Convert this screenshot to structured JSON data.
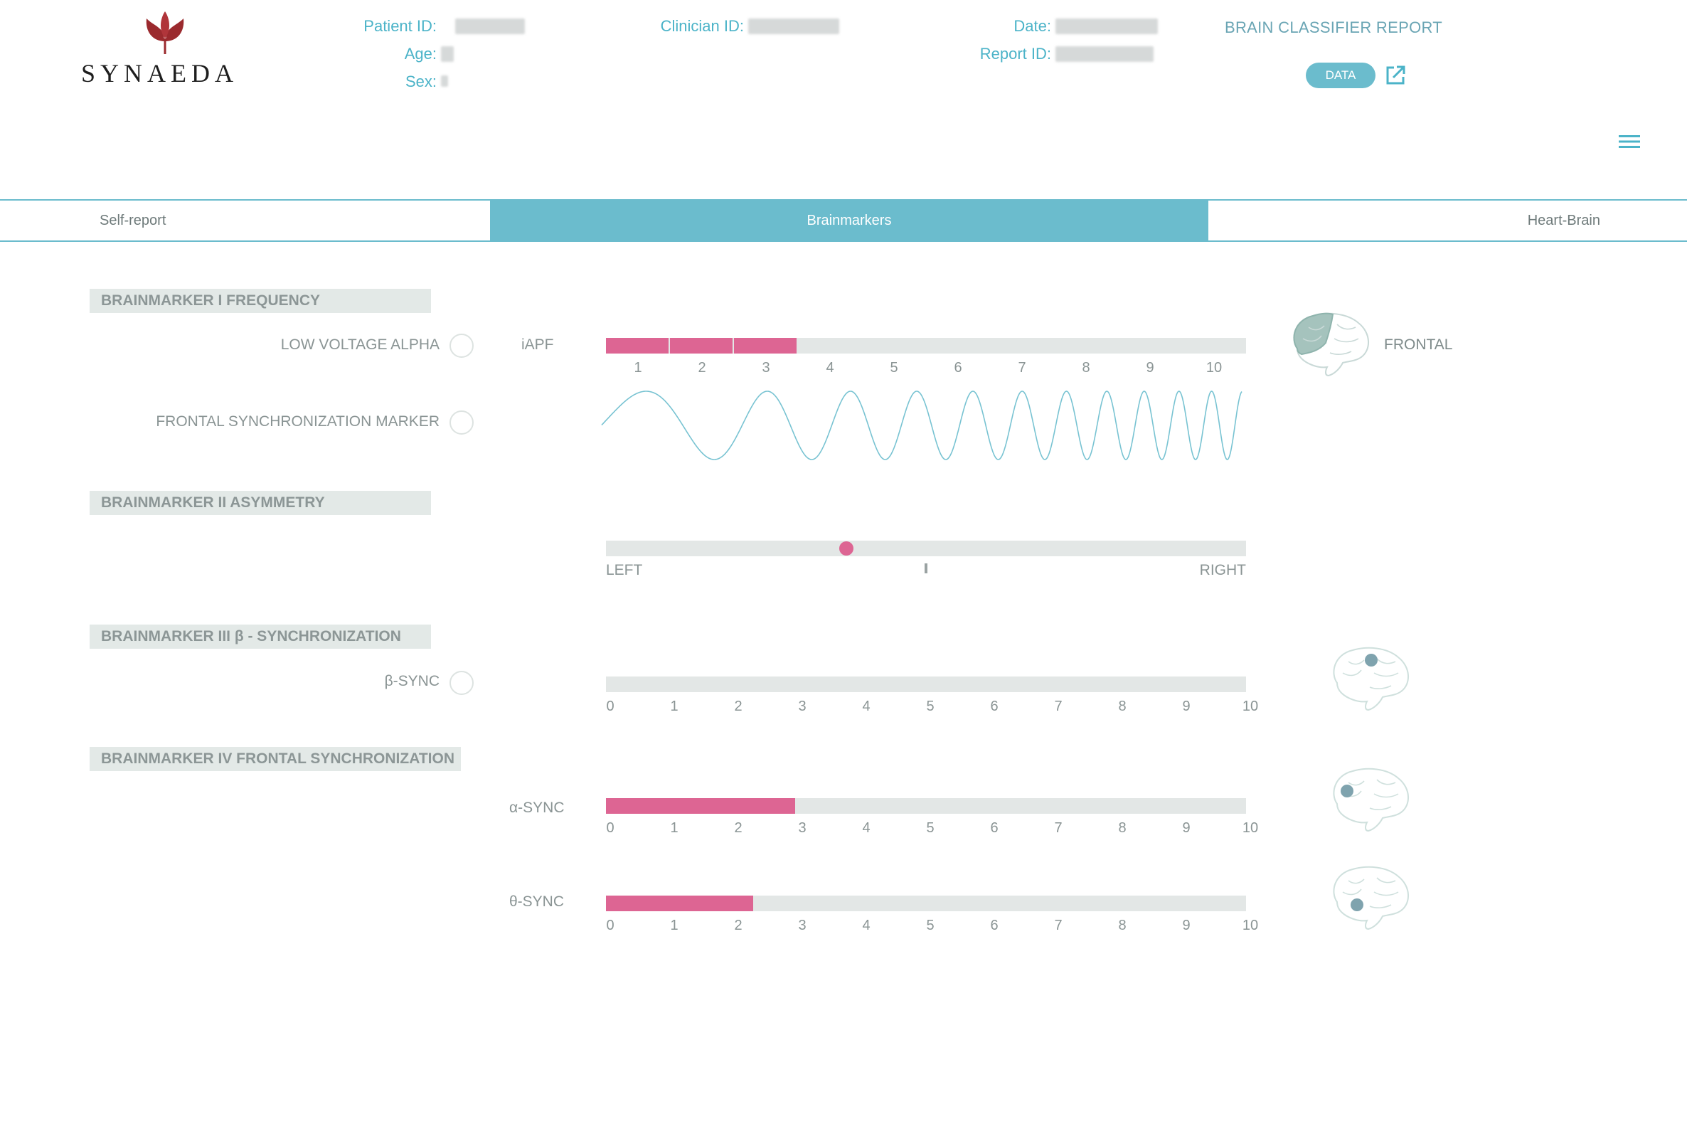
{
  "header": {
    "brand": "SYNAEDA",
    "patient_id_label": "Patient ID:",
    "age_label": "Age:",
    "sex_label": "Sex:",
    "clinician_id_label": "Clinician ID:",
    "date_label": "Date:",
    "report_id_label": "Report ID:",
    "report_title": "BRAIN CLASSIFIER REPORT",
    "data_button": "DATA",
    "icons": [
      "tulip-logo-icon",
      "external-link-icon",
      "hamburger-menu-icon"
    ]
  },
  "tabs": [
    {
      "label": "Self-report",
      "active": false
    },
    {
      "label": "Brainmarkers",
      "active": true
    },
    {
      "label": "Heart-Brain",
      "active": false
    }
  ],
  "sections": {
    "freq": {
      "title": "BRAINMARKER I FREQUENCY",
      "low_voltage_alpha": "LOW VOLTAGE ALPHA",
      "frontal_sync_marker": "FRONTAL SYNCHRONIZATION MARKER",
      "iapf_label": "iAPF",
      "iapf_value": 3,
      "scale": [
        "1",
        "2",
        "3",
        "4",
        "5",
        "6",
        "7",
        "8",
        "9",
        "10"
      ],
      "region": "FRONTAL"
    },
    "asym": {
      "title": "BRAINMARKER II ASYMMETRY",
      "left": "LEFT",
      "right": "RIGHT",
      "marker_fraction": 0.375
    },
    "beta": {
      "title": "BRAINMARKER III β - SYNCHRONIZATION",
      "label": "β-SYNC",
      "value": 0
    },
    "frontal": {
      "title": "BRAINMARKER IV FRONTAL SYNCHRONIZATION",
      "alpha_label": "α-SYNC",
      "alpha_value": 2.95,
      "theta_label": "θ-SYNC",
      "theta_value": 2.3
    },
    "scale10": [
      "0",
      "1",
      "2",
      "3",
      "4",
      "5",
      "6",
      "7",
      "8",
      "9",
      "10"
    ]
  },
  "colors": {
    "accent": "#6bbccd",
    "bar_fill": "#dd6593",
    "track": "#e3e7e6",
    "brand_red": "#9b2a2e"
  }
}
